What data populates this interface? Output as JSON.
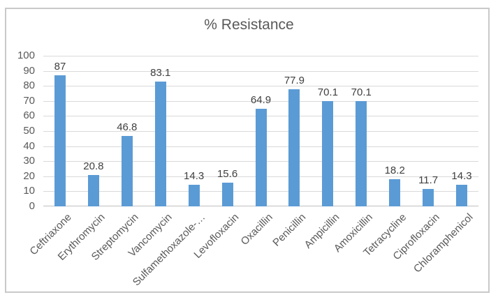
{
  "chart_data": {
    "type": "bar",
    "title": "% Resistance",
    "categories": [
      "Ceftriaxone",
      "Erythromycin",
      "Streptomycin",
      "Vancomycin",
      "Sulfamethoxazole-…",
      "Levofloxacin",
      "Oxacillin",
      "Penicillin",
      "Ampicillin",
      "Amoxicillin",
      "Tetracycline",
      "Ciprofloxacin",
      "Chloramphenicol"
    ],
    "values": [
      87,
      20.8,
      46.8,
      83.1,
      14.3,
      15.6,
      64.9,
      77.9,
      70.1,
      70.1,
      18.2,
      11.7,
      14.3
    ],
    "data_labels": [
      "87",
      "20.8",
      "46.8",
      "83.1",
      "14.3",
      "15.6",
      "64.9",
      "77.9",
      "70.1",
      "70.1",
      "18.2",
      "11.7",
      "14.3"
    ],
    "xlabel": "",
    "ylabel": "",
    "ylim": [
      0,
      100
    ],
    "y_ticks": [
      0,
      10,
      20,
      30,
      40,
      50,
      60,
      70,
      80,
      90,
      100
    ],
    "grid": true,
    "legend": "none",
    "category_label_rotation_deg": 45,
    "colors": {
      "bar": "#5B9BD5",
      "gridline": "#d9d9d9",
      "axis_line": "#bfbfbf",
      "title_text": "#595959",
      "tick_label_text": "#595959",
      "category_label_text": "#595959",
      "data_label_text": "#3f3f3f",
      "frame_border": "#c9c9c9",
      "background": "#ffffff"
    }
  }
}
